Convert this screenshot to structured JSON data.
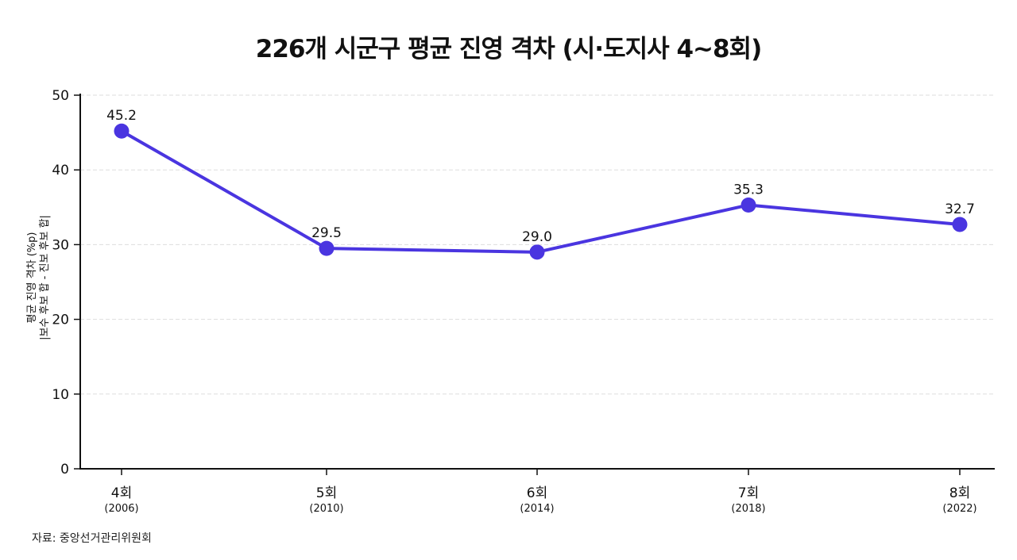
{
  "chart_data": {
    "type": "line",
    "title": "226개 시군구 평균 진영 격차 (시·도지사 4~8회)",
    "ylabel_lines": [
      "평균 진영 격차 (%p)",
      "|보수 후보 합 - 진보 후보 합|"
    ],
    "xlabel": "",
    "categories": [
      "4회",
      "5회",
      "6회",
      "7회",
      "8회"
    ],
    "category_years": [
      "(2006)",
      "(2010)",
      "(2014)",
      "(2018)",
      "(2022)"
    ],
    "values": [
      45.2,
      29.5,
      29.0,
      35.3,
      32.7
    ],
    "data_labels": [
      "45.2",
      "29.5",
      "29.0",
      "35.3",
      "32.7"
    ],
    "ylim": [
      0,
      50
    ],
    "yticks": [
      0,
      10,
      20,
      30,
      40,
      50
    ],
    "grid": true,
    "line_color": "#4a35e0",
    "grid_color": "#dddddd"
  },
  "source": "자료: 중앙선거관리위원회"
}
